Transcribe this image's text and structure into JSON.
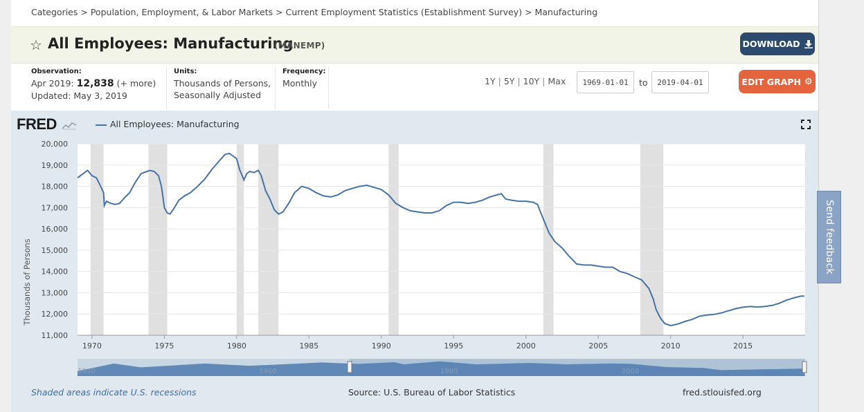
{
  "breadcrumb": {
    "items": [
      "Categories",
      "Population, Employment, & Labor Markets",
      "Current Employment Statistics (Establishment Survey)",
      "Manufacturing"
    ],
    "separator": ">"
  },
  "header": {
    "title": "All Employees: Manufacturing",
    "series_id": "(MANEMP)",
    "download_label": "DOWNLOAD"
  },
  "meta": {
    "observation_label": "Observation:",
    "observation_date": "Apr 2019:",
    "observation_value": "12,838",
    "observation_more": "(+ more)",
    "updated": "Updated: May 3, 2019",
    "units_label": "Units:",
    "units_line1": "Thousands of Persons,",
    "units_line2": "Seasonally Adjusted",
    "frequency_label": "Frequency:",
    "frequency_value": "Monthly"
  },
  "range": {
    "links": [
      "1Y",
      "5Y",
      "10Y",
      "Max"
    ],
    "start": "1969-01-01",
    "to_label": "to",
    "end": "2019-04-01",
    "edit_label": "EDIT GRAPH"
  },
  "graph": {
    "logo": "FRED",
    "legend": "All Employees: Manufacturing",
    "shaded_note": "Shaded areas indicate U.S. recessions",
    "source": "Source: U.S. Bureau of Labor Statistics",
    "site": "fred.stlouisfed.org",
    "feedback": "Send feedback"
  },
  "colors": {
    "series": "#4572a7",
    "recession": "#e0e0e0",
    "download_btn": "#2c4a6e",
    "edit_btn": "#e4643e"
  },
  "chart_data": {
    "type": "line",
    "title": "All Employees: Manufacturing",
    "ylabel": "Thousands of Persons",
    "xlabel": "",
    "xlim": [
      1969.0,
      2019.3
    ],
    "ylim": [
      11000,
      20000
    ],
    "y_ticks": [
      20000,
      19000,
      18000,
      17000,
      16000,
      15000,
      14000,
      13000,
      12000,
      11000
    ],
    "y_tick_labels": [
      "20,000",
      "19,000",
      "18,000",
      "17,000",
      "16,000",
      "15,000",
      "14,000",
      "13,000",
      "12,000",
      "11,000"
    ],
    "x_ticks": [
      1970,
      1975,
      1980,
      1985,
      1990,
      1995,
      2000,
      2005,
      2010,
      2015
    ],
    "recessions": [
      [
        1969.9,
        1970.8
      ],
      [
        1973.9,
        1975.2
      ],
      [
        1980.0,
        1980.5
      ],
      [
        1981.5,
        1982.9
      ],
      [
        1990.5,
        1991.2
      ],
      [
        2001.2,
        2001.9
      ],
      [
        2007.9,
        2009.5
      ]
    ],
    "navigator_labels": [
      "1940",
      "1960",
      "1980",
      "2000"
    ],
    "series": [
      {
        "name": "All Employees: Manufacturing",
        "x": [
          1969.0,
          1969.3,
          1969.5,
          1969.7,
          1970.0,
          1970.3,
          1970.6,
          1970.8,
          1970.85,
          1971.0,
          1971.3,
          1971.6,
          1971.9,
          1972.3,
          1972.6,
          1973.0,
          1973.4,
          1973.8,
          1974.0,
          1974.3,
          1974.6,
          1974.8,
          1975.0,
          1975.2,
          1975.4,
          1975.7,
          1976.0,
          1976.4,
          1976.8,
          1977.3,
          1977.8,
          1978.3,
          1978.8,
          1979.2,
          1979.5,
          1979.8,
          1980.0,
          1980.2,
          1980.5,
          1980.7,
          1980.9,
          1981.2,
          1981.5,
          1981.7,
          1982.0,
          1982.3,
          1982.6,
          1982.9,
          1983.2,
          1983.6,
          1984.0,
          1984.5,
          1985.0,
          1985.5,
          1986.0,
          1986.5,
          1987.0,
          1987.5,
          1988.0,
          1988.5,
          1989.0,
          1989.5,
          1990.0,
          1990.5,
          1991.0,
          1991.5,
          1992.0,
          1992.5,
          1993.0,
          1993.5,
          1994.0,
          1994.5,
          1995.0,
          1995.5,
          1996.0,
          1996.5,
          1997.0,
          1997.5,
          1998.0,
          1998.3,
          1998.6,
          1999.0,
          1999.5,
          2000.0,
          2000.5,
          2000.8,
          2001.0,
          2001.3,
          2001.6,
          2002.0,
          2002.5,
          2003.0,
          2003.5,
          2004.0,
          2004.5,
          2005.0,
          2005.5,
          2006.0,
          2006.5,
          2007.0,
          2007.5,
          2008.0,
          2008.5,
          2008.8,
          2009.0,
          2009.3,
          2009.6,
          2010.0,
          2010.5,
          2011.0,
          2011.5,
          2012.0,
          2012.5,
          2013.0,
          2013.5,
          2014.0,
          2014.5,
          2015.0,
          2015.5,
          2016.0,
          2016.5,
          2017.0,
          2017.5,
          2018.0,
          2018.5,
          2019.0,
          2019.25
        ],
        "values": [
          18400,
          18550,
          18650,
          18750,
          18500,
          18400,
          18000,
          17700,
          17100,
          17300,
          17200,
          17150,
          17200,
          17500,
          17700,
          18200,
          18600,
          18700,
          18750,
          18700,
          18500,
          18000,
          17000,
          16750,
          16700,
          17000,
          17350,
          17550,
          17700,
          18000,
          18350,
          18800,
          19200,
          19500,
          19550,
          19400,
          19300,
          18800,
          18300,
          18600,
          18700,
          18650,
          18750,
          18500,
          17800,
          17400,
          16900,
          16700,
          16800,
          17200,
          17700,
          18000,
          17900,
          17700,
          17550,
          17500,
          17600,
          17800,
          17900,
          18000,
          18050,
          17950,
          17850,
          17600,
          17200,
          17000,
          16850,
          16800,
          16750,
          16750,
          16850,
          17100,
          17250,
          17250,
          17200,
          17250,
          17350,
          17500,
          17600,
          17650,
          17400,
          17350,
          17300,
          17300,
          17250,
          17150,
          16800,
          16300,
          15800,
          15400,
          15100,
          14700,
          14350,
          14300,
          14300,
          14250,
          14200,
          14200,
          14000,
          13900,
          13750,
          13600,
          13200,
          12700,
          12200,
          11800,
          11550,
          11450,
          11530,
          11650,
          11750,
          11900,
          11950,
          11980,
          12050,
          12150,
          12250,
          12320,
          12350,
          12330,
          12350,
          12400,
          12500,
          12650,
          12750,
          12840,
          12838
        ]
      }
    ]
  }
}
